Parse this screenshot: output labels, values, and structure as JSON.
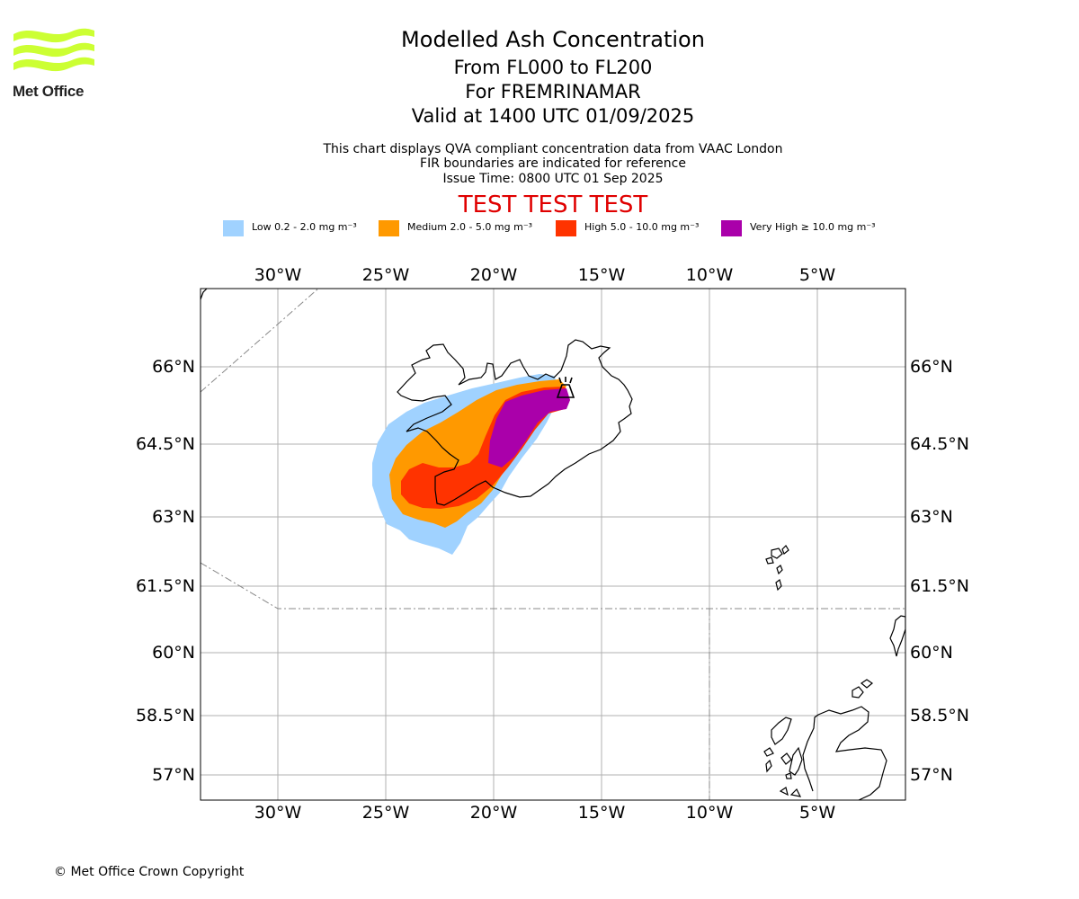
{
  "brand": {
    "name": "Met Office",
    "color": "#ccff33"
  },
  "titles": {
    "main": "Modelled Ash Concentration",
    "levels": "From FL000 to FL200",
    "region": "For FREMRINAMAR",
    "valid": "Valid at 1400 UTC 01/09/2025"
  },
  "subtitles": {
    "line1": "This chart displays QVA compliant concentration data from VAAC London",
    "line2": "FIR boundaries are indicated for reference",
    "line3": "Issue Time: 0800 UTC 01 Sep 2025"
  },
  "test_banner": "TEST TEST TEST",
  "legend": [
    {
      "label": "Low 0.2 - 2.0 mg m⁻³",
      "color": "#a0d2ff"
    },
    {
      "label": "Medium 2.0 - 5.0 mg m⁻³",
      "color": "#ff9900"
    },
    {
      "label": "High 5.0 - 10.0 mg m⁻³",
      "color": "#ff3300"
    },
    {
      "label": "Very High ≥ 10.0 mg m⁻³",
      "color": "#aa00aa"
    }
  ],
  "map": {
    "lon_ticks": [
      "30°W",
      "25°W",
      "20°W",
      "15°W",
      "10°W",
      "5°W"
    ],
    "lat_ticks": [
      "66°N",
      "64.5°N",
      "63°N",
      "61.5°N",
      "60°N",
      "58.5°N",
      "57°N"
    ],
    "volcano_icon": "volcano-icon"
  },
  "copyright": "© Met Office Crown Copyright"
}
